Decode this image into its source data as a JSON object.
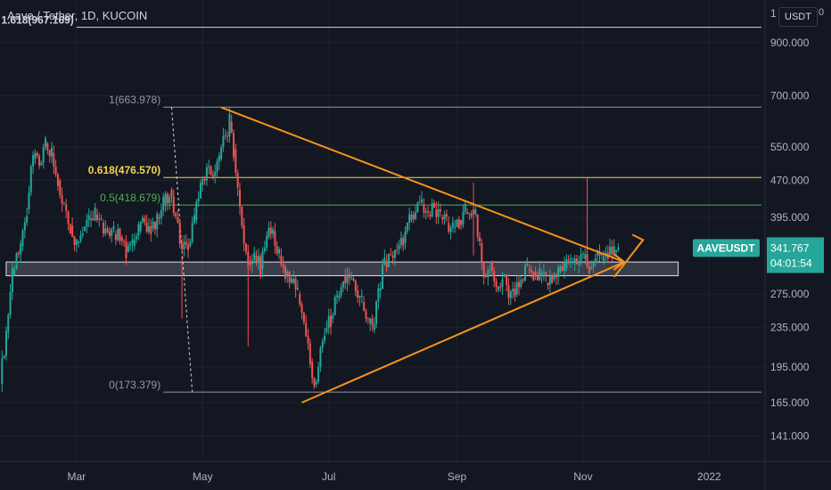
{
  "header": {
    "title": "Aave / Tether, 1D, KUCOIN",
    "currency_button": "USDT",
    "corner_digit": "0",
    "top_axis_partial": "1"
  },
  "colors": {
    "background": "#131722",
    "up_candle": "#26a69a",
    "down_candle": "#ef5350",
    "trendline": "#f7931a",
    "fib_1": "#787b86",
    "fib_0618": "#f5d547",
    "fib_05": "#4caf50",
    "fib_0": "#787b86",
    "price_tag": "#26a69a"
  },
  "chart_data": {
    "type": "candlestick",
    "symbol": "AAVEUSDT",
    "exchange": "KUCOIN",
    "interval": "1D",
    "y_scale": "log",
    "ylim": [
      125,
      1100
    ],
    "y_ticks": [
      {
        "value": 900,
        "label": "900.000"
      },
      {
        "value": 700,
        "label": "700.000"
      },
      {
        "value": 550,
        "label": "550.000"
      },
      {
        "value": 470,
        "label": "470.000"
      },
      {
        "value": 395,
        "label": "395.000"
      },
      {
        "value": 275,
        "label": "275.000"
      },
      {
        "value": 235,
        "label": "235.000"
      },
      {
        "value": 195,
        "label": "195.000"
      },
      {
        "value": 165,
        "label": "165.000"
      },
      {
        "value": 141,
        "label": "141.000"
      }
    ],
    "xlim": [
      "2021-01-23",
      "2022-01-28"
    ],
    "x_ticks": [
      {
        "date": "2021-03-01",
        "label": "Mar"
      },
      {
        "date": "2021-05-01",
        "label": "May"
      },
      {
        "date": "2021-07-01",
        "label": "Jul"
      },
      {
        "date": "2021-09-01",
        "label": "Sep"
      },
      {
        "date": "2021-11-01",
        "label": "Nov"
      },
      {
        "date": "2022-01-01",
        "label": "2022"
      }
    ],
    "last_price": {
      "label": "341.767",
      "value": 341.767,
      "symbol": "AAVEUSDT",
      "countdown": "04:01:54"
    },
    "fib_levels": [
      {
        "label": "1.618(967.169)",
        "value": 967.169,
        "date_start": "2021-03-01",
        "label_color": "#d1d4dc"
      },
      {
        "label": "1(663.978)",
        "value": 663.978,
        "date_start": "2021-04-12",
        "label_color": "#9598a1"
      },
      {
        "label": "0.618(476.570)",
        "value": 476.57,
        "date_start": "2021-04-12",
        "label_color": "#f5d547"
      },
      {
        "label": "0.5(418.679)",
        "value": 418.679,
        "date_start": "2021-04-12",
        "label_color": "#4caf50"
      },
      {
        "label": "0(173.379)",
        "value": 173.379,
        "date_start": "2021-04-12",
        "label_color": "#9598a1"
      }
    ],
    "fib_anchor": {
      "from": {
        "date": "2021-04-16",
        "value": 663.978
      },
      "to": {
        "date": "2021-04-26",
        "value": 173.379
      }
    },
    "support_zone": {
      "date_start": "2021-01-26",
      "date_end": "2021-12-17",
      "low": 300,
      "high": 320
    },
    "trendlines": [
      {
        "name": "upper",
        "from": {
          "date": "2021-05-10",
          "value": 663
        },
        "to": {
          "date": "2021-11-21",
          "value": 320
        }
      },
      {
        "name": "lower",
        "from": {
          "date": "2021-06-18",
          "value": 165
        },
        "to": {
          "date": "2021-11-21",
          "value": 320
        }
      },
      {
        "name": "projection",
        "from": {
          "date": "2021-11-16",
          "value": 298
        },
        "to": {
          "date": "2021-11-30",
          "value": 355
        }
      }
    ],
    "price_path": [
      [
        "2021-01-23",
        180
      ],
      [
        "2021-01-26",
        230
      ],
      [
        "2021-01-29",
        300
      ],
      [
        "2021-02-02",
        345
      ],
      [
        "2021-02-05",
        410
      ],
      [
        "2021-02-08",
        520
      ],
      [
        "2021-02-11",
        505
      ],
      [
        "2021-02-14",
        560
      ],
      [
        "2021-02-17",
        535
      ],
      [
        "2021-02-20",
        470
      ],
      [
        "2021-02-23",
        420
      ],
      [
        "2021-02-26",
        380
      ],
      [
        "2021-03-01",
        350
      ],
      [
        "2021-03-04",
        370
      ],
      [
        "2021-03-07",
        390
      ],
      [
        "2021-03-10",
        400
      ],
      [
        "2021-03-13",
        385
      ],
      [
        "2021-03-16",
        370
      ],
      [
        "2021-03-19",
        365
      ],
      [
        "2021-03-22",
        360
      ],
      [
        "2021-03-25",
        335
      ],
      [
        "2021-03-28",
        345
      ],
      [
        "2021-03-31",
        370
      ],
      [
        "2021-04-03",
        385
      ],
      [
        "2021-04-06",
        375
      ],
      [
        "2021-04-09",
        395
      ],
      [
        "2021-04-12",
        420
      ],
      [
        "2021-04-15",
        450
      ],
      [
        "2021-04-18",
        395
      ],
      [
        "2021-04-21",
        340
      ],
      [
        "2021-04-24",
        345
      ],
      [
        "2021-04-27",
        390
      ],
      [
        "2021-04-30",
        460
      ],
      [
        "2021-05-03",
        500
      ],
      [
        "2021-05-06",
        480
      ],
      [
        "2021-05-09",
        520
      ],
      [
        "2021-05-12",
        580
      ],
      [
        "2021-05-14",
        620
      ],
      [
        "2021-05-16",
        545
      ],
      [
        "2021-05-18",
        450
      ],
      [
        "2021-05-20",
        380
      ],
      [
        "2021-05-23",
        320
      ],
      [
        "2021-05-26",
        330
      ],
      [
        "2021-05-29",
        310
      ],
      [
        "2021-06-01",
        360
      ],
      [
        "2021-06-04",
        370
      ],
      [
        "2021-06-07",
        330
      ],
      [
        "2021-06-10",
        300
      ],
      [
        "2021-06-13",
        290
      ],
      [
        "2021-06-16",
        275
      ],
      [
        "2021-06-19",
        240
      ],
      [
        "2021-06-22",
        200
      ],
      [
        "2021-06-24",
        180
      ],
      [
        "2021-06-26",
        195
      ],
      [
        "2021-06-29",
        230
      ],
      [
        "2021-07-02",
        245
      ],
      [
        "2021-07-05",
        270
      ],
      [
        "2021-07-08",
        300
      ],
      [
        "2021-07-11",
        295
      ],
      [
        "2021-07-14",
        280
      ],
      [
        "2021-07-17",
        265
      ],
      [
        "2021-07-20",
        240
      ],
      [
        "2021-07-22",
        232
      ],
      [
        "2021-07-25",
        280
      ],
      [
        "2021-07-28",
        320
      ],
      [
        "2021-07-31",
        330
      ],
      [
        "2021-08-03",
        340
      ],
      [
        "2021-08-06",
        350
      ],
      [
        "2021-08-09",
        390
      ],
      [
        "2021-08-12",
        405
      ],
      [
        "2021-08-15",
        420
      ],
      [
        "2021-08-18",
        400
      ],
      [
        "2021-08-21",
        410
      ],
      [
        "2021-08-24",
        395
      ],
      [
        "2021-08-27",
        385
      ],
      [
        "2021-08-30",
        375
      ],
      [
        "2021-09-02",
        390
      ],
      [
        "2021-09-05",
        405
      ],
      [
        "2021-09-08",
        410
      ],
      [
        "2021-09-10",
        400
      ],
      [
        "2021-09-12",
        350
      ],
      [
        "2021-09-14",
        300
      ],
      [
        "2021-09-17",
        320
      ],
      [
        "2021-09-20",
        280
      ],
      [
        "2021-09-23",
        300
      ],
      [
        "2021-09-26",
        270
      ],
      [
        "2021-09-29",
        275
      ],
      [
        "2021-10-02",
        295
      ],
      [
        "2021-10-05",
        310
      ],
      [
        "2021-10-08",
        305
      ],
      [
        "2021-10-11",
        300
      ],
      [
        "2021-10-14",
        290
      ],
      [
        "2021-10-17",
        295
      ],
      [
        "2021-10-20",
        305
      ],
      [
        "2021-10-23",
        310
      ],
      [
        "2021-10-26",
        320
      ],
      [
        "2021-10-29",
        315
      ],
      [
        "2021-11-01",
        325
      ],
      [
        "2021-11-04",
        310
      ],
      [
        "2021-11-07",
        330
      ],
      [
        "2021-11-10",
        320
      ],
      [
        "2021-11-13",
        330
      ],
      [
        "2021-11-16",
        335
      ],
      [
        "2021-11-18",
        341.767
      ]
    ],
    "spike_wicks": [
      {
        "date": "2021-11-03",
        "high": 476
      },
      {
        "date": "2021-09-09",
        "high": 465
      },
      {
        "date": "2021-04-21",
        "low": 245
      },
      {
        "date": "2021-05-23",
        "low": 215
      }
    ]
  }
}
